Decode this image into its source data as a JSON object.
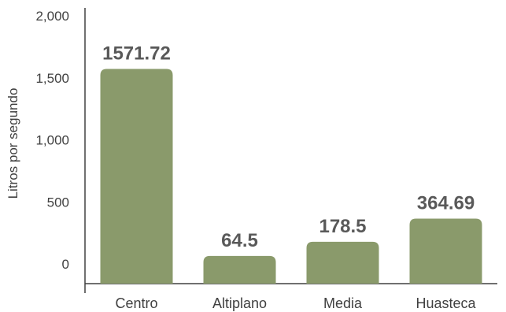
{
  "chart_data": {
    "type": "bar",
    "categories": [
      "Centro",
      "Altiplano",
      "Media",
      "Huasteca"
    ],
    "values": [
      1571.72,
      64.5,
      178.5,
      364.69
    ],
    "data_labels": [
      "1571.72",
      "64.5",
      "178.5",
      "364.69"
    ],
    "ylabel": "Litros por segundo",
    "ylim": [
      0,
      2000
    ],
    "yticks": [
      0,
      500,
      1000,
      1500,
      2000
    ],
    "ytick_labels": [
      "0",
      "500",
      "1,000",
      "1,500",
      "2,000"
    ],
    "grid": false,
    "legend": "none",
    "bar_color": "#8a9a6b"
  }
}
